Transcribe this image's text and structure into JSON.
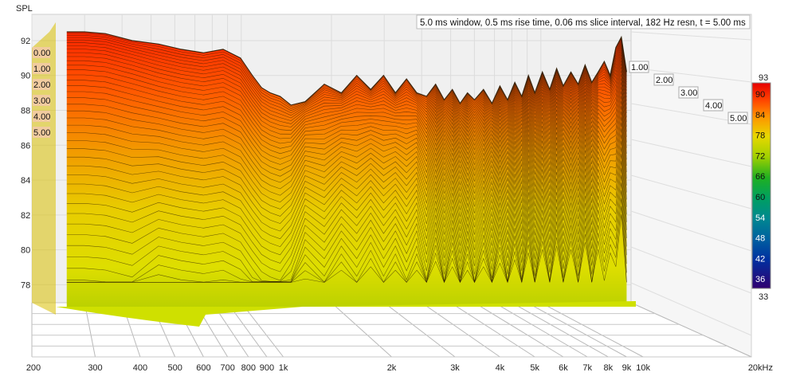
{
  "chart_data": {
    "type": "area",
    "title": "5.0 ms window, 0.5 ms rise time, 0.06 ms slice interval, 182 Hz resn, t = 5.00 ms",
    "ylabel": "SPL",
    "xunit": "kHz",
    "ylim": [
      77,
      93.5
    ],
    "xlim": [
      200,
      20000
    ],
    "x_scale": "log",
    "y_ticks": [
      "78",
      "80",
      "82",
      "84",
      "86",
      "88",
      "90",
      "92"
    ],
    "x_ticks": [
      {
        "v": 200,
        "label": "200"
      },
      {
        "v": 300,
        "label": "300"
      },
      {
        "v": 400,
        "label": "400"
      },
      {
        "v": 500,
        "label": "500"
      },
      {
        "v": 600,
        "label": "600"
      },
      {
        "v": 700,
        "label": "700"
      },
      {
        "v": 800,
        "label": "800"
      },
      {
        "v": 900,
        "label": "900"
      },
      {
        "v": 1000,
        "label": "1k"
      },
      {
        "v": 2000,
        "label": "2k"
      },
      {
        "v": 3000,
        "label": "3k"
      },
      {
        "v": 4000,
        "label": "4k"
      },
      {
        "v": 5000,
        "label": "5k"
      },
      {
        "v": 6000,
        "label": "6k"
      },
      {
        "v": 7000,
        "label": "7k"
      },
      {
        "v": 8000,
        "label": "8k"
      },
      {
        "v": 9000,
        "label": "9k"
      },
      {
        "v": 10000,
        "label": "10k"
      },
      {
        "v": 20000,
        "label": "20kHz"
      }
    ],
    "time_labels_left": [
      "0.00",
      "1.00",
      "2.00",
      "3.00",
      "4.00",
      "5.00"
    ],
    "time_labels_right": [
      "1.00",
      "2.00",
      "3.00",
      "4.00",
      "5.00"
    ],
    "colorbar": {
      "min_label": "33",
      "max_label": "93",
      "ticks": [
        "90",
        "84",
        "78",
        "72",
        "66",
        "60",
        "54",
        "48",
        "42",
        "36"
      ]
    },
    "front_slice": {
      "x": [
        250,
        280,
        320,
        380,
        450,
        520,
        600,
        680,
        760,
        820,
        870,
        920,
        980,
        1050,
        1150,
        1300,
        1450,
        1600,
        1750,
        1900,
        2050,
        2200,
        2350,
        2500,
        2650,
        2800,
        2950,
        3100,
        3250,
        3400,
        3600,
        3800,
        4000,
        4200,
        4400,
        4600,
        4800,
        5000,
        5250,
        5500,
        5750,
        6000,
        6300,
        6600,
        6900,
        7200,
        7500,
        7800,
        8100,
        8400,
        8700,
        9000
      ],
      "y": [
        92.5,
        92.5,
        92.4,
        92.0,
        91.8,
        91.5,
        91.3,
        91.5,
        91.0,
        90.0,
        89.3,
        89.0,
        88.8,
        88.3,
        88.5,
        89.5,
        89.0,
        90.0,
        89.2,
        90.0,
        89.0,
        89.8,
        89.0,
        88.8,
        89.5,
        88.6,
        89.2,
        88.4,
        89.0,
        88.6,
        89.2,
        88.4,
        89.4,
        88.6,
        89.6,
        88.8,
        90.0,
        89.0,
        90.2,
        89.2,
        90.4,
        89.4,
        90.2,
        89.5,
        90.6,
        89.6,
        90.2,
        90.8,
        90.0,
        91.6,
        92.2,
        90.2
      ]
    },
    "series": [
      {
        "t": "0.00"
      },
      {
        "t": "1.00"
      },
      {
        "t": "2.00"
      },
      {
        "t": "3.00"
      },
      {
        "t": "4.00"
      },
      {
        "t": "5.00"
      }
    ],
    "colors": {
      "top": "#ff2a00",
      "mid": "#f07000",
      "low": "#e8d800",
      "base": "#a0c000",
      "grid": "#d6d6d6",
      "floor": "#b8b8b8",
      "contour": "#2a1a00"
    }
  }
}
